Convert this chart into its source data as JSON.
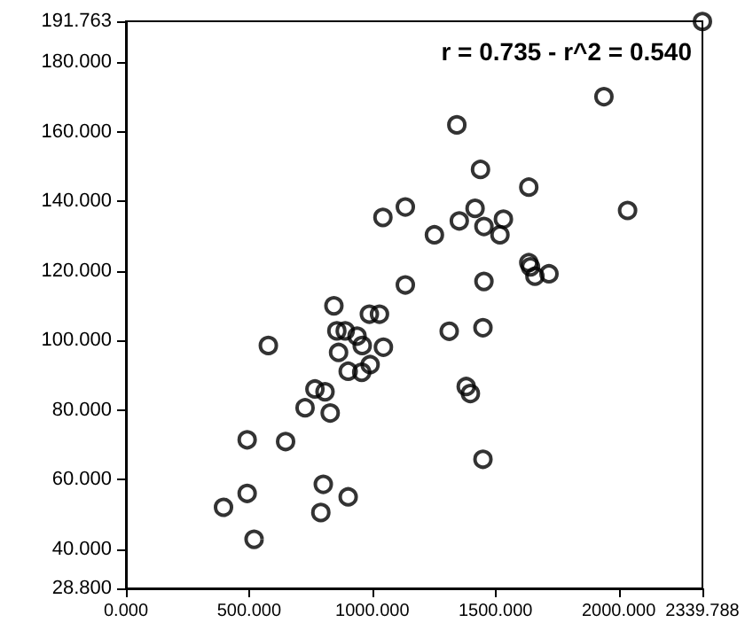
{
  "chart_data": {
    "type": "scatter",
    "marker": "circle",
    "grid": false,
    "annotations": [
      "r = 0.735 - r^2 = 0.540"
    ],
    "xlim": [
      0,
      2339.788
    ],
    "xticks": [
      {
        "value": 0,
        "label": "0.000"
      },
      {
        "value": 500,
        "label": "500.000"
      },
      {
        "value": 1000,
        "label": "1000.000"
      },
      {
        "value": 1500,
        "label": "1500.000"
      },
      {
        "value": 2000,
        "label": "2000.000"
      },
      {
        "value": 2339.788,
        "label": "2339.788"
      }
    ],
    "ylim": [
      28.8,
      191.763
    ],
    "yticks": [
      {
        "value": 28.8,
        "label": "28.800"
      },
      {
        "value": 40,
        "label": "40.000"
      },
      {
        "value": 60,
        "label": "60.000"
      },
      {
        "value": 80,
        "label": "80.000"
      },
      {
        "value": 100,
        "label": "100.000"
      },
      {
        "value": 120,
        "label": "120.000"
      },
      {
        "value": 140,
        "label": "140.000"
      },
      {
        "value": 160,
        "label": "160.000"
      },
      {
        "value": 180,
        "label": "180.000"
      },
      {
        "value": 191.763,
        "label": "191.763"
      }
    ],
    "series": [
      {
        "color": "#000000",
        "x": [
          2339.788,
          1940,
          1343,
          1439,
          1635,
          2036,
          1043,
          1134,
          1417,
          1353,
          1453,
          1532,
          1518,
          1252,
          1635,
          1642,
          1660,
          1717,
          1453,
          1134,
          844,
          988,
          1029,
          856,
          890,
          938,
          959,
          1045,
          578,
          863,
          991,
          902,
          957,
          1312,
          1449,
          1381,
          1398,
          767,
          808,
          727,
          829,
          492,
          648,
          1449,
          801,
          492,
          902,
          396,
          791,
          520
        ],
        "values": [
          191.7,
          170.1,
          162,
          149.2,
          144.1,
          137.4,
          135.4,
          138.4,
          138,
          134.4,
          132.8,
          134.9,
          130.4,
          130.4,
          122.4,
          121.2,
          118.5,
          119.2,
          117,
          116,
          110,
          107.6,
          107.6,
          102.8,
          102.8,
          101.3,
          98.6,
          98.1,
          98.6,
          96.6,
          93.1,
          91.2,
          90.9,
          102.7,
          103.7,
          86.8,
          84.8,
          86.1,
          85.3,
          80.7,
          79.2,
          71.5,
          71,
          65.9,
          58.7,
          56.1,
          55.1,
          52.1,
          50.6,
          42.9
        ]
      }
    ]
  }
}
